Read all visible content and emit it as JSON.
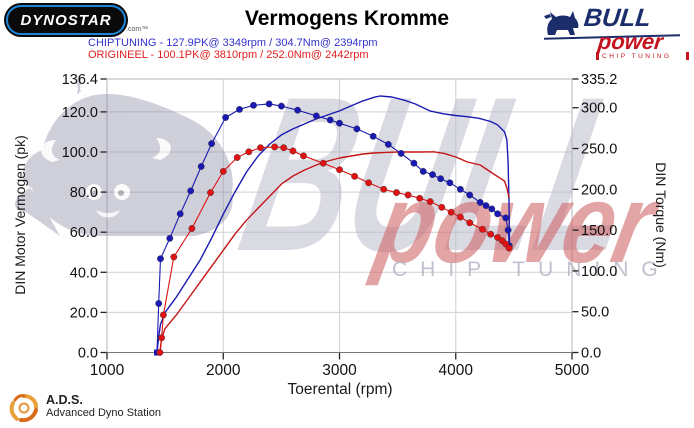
{
  "header": {
    "dynostar_text": "DYNOSTAR",
    "dynostar_domain": ".com™",
    "title": "Vermogens Kromme",
    "legend": [
      {
        "text": "CHIPTUNING  - 127.9PK@ 3349rpm / 304.7Nm@ 2394rpm",
        "color": "#3232cc"
      },
      {
        "text": "ORIGINEEL  - 100.1PK@ 3810rpm / 252.0Nm@ 2442rpm",
        "color": "#e02020"
      }
    ],
    "bullpower_logo": {
      "word1": "BULL",
      "word2": "power",
      "word3": "CHIP TUNING"
    }
  },
  "watermark": {
    "word1": "BULL",
    "word2": "power",
    "word3": "CHIP TUNING"
  },
  "footer": {
    "ads_abbr": "A.D.S.",
    "ads_full": "Advanced Dyno Station"
  },
  "chart_data": {
    "type": "line",
    "title": "Vermogens Kromme",
    "xlabel": "Toerental (rpm)",
    "ylabel_left": "DIN Motor Vermogen (pk)",
    "ylabel_right": "DIN Torque (Nm)",
    "xlim": [
      1000,
      5000
    ],
    "ylim_left": [
      0,
      136.4
    ],
    "ylim_right": [
      0,
      335.2
    ],
    "x_ticks": [
      1000,
      2000,
      3000,
      4000,
      5000
    ],
    "y_left_ticks": [
      0,
      20,
      40,
      60,
      80,
      100,
      120,
      136.4
    ],
    "y_right_ticks": [
      0,
      50,
      100,
      150,
      200,
      250,
      300,
      335.2
    ],
    "grid": true,
    "legend_position": "top-left",
    "series": [
      {
        "name": "CHIPTUNING vermogen (pk)",
        "axis": "left",
        "color": "#1a1ab2",
        "markers": false,
        "width": 1.4,
        "points": [
          [
            1430,
            0
          ],
          [
            1445,
            8
          ],
          [
            1460,
            14
          ],
          [
            1500,
            20
          ],
          [
            1600,
            28
          ],
          [
            1700,
            37
          ],
          [
            1800,
            46
          ],
          [
            1900,
            57
          ],
          [
            2000,
            69
          ],
          [
            2100,
            80
          ],
          [
            2200,
            90
          ],
          [
            2300,
            98
          ],
          [
            2400,
            104
          ],
          [
            2500,
            108.5
          ],
          [
            2600,
            111.5
          ],
          [
            2700,
            114
          ],
          [
            2800,
            116.5
          ],
          [
            2900,
            118.5
          ],
          [
            3000,
            120.5
          ],
          [
            3100,
            123
          ],
          [
            3200,
            125.5
          ],
          [
            3300,
            127.3
          ],
          [
            3349,
            127.9
          ],
          [
            3450,
            127.4
          ],
          [
            3550,
            126
          ],
          [
            3650,
            124
          ],
          [
            3778,
            120.5
          ],
          [
            3900,
            119
          ],
          [
            4000,
            118.2
          ],
          [
            4100,
            117.6
          ],
          [
            4200,
            116.8
          ],
          [
            4300,
            115.2
          ],
          [
            4360,
            113.5
          ],
          [
            4420,
            110
          ],
          [
            4440,
            106
          ],
          [
            4450,
            95
          ],
          [
            4458,
            75
          ],
          [
            4462,
            53
          ]
        ]
      },
      {
        "name": "ORIGINEEL vermogen (pk)",
        "axis": "left",
        "color": "#c41616",
        "markers": false,
        "width": 1.4,
        "points": [
          [
            1455,
            0
          ],
          [
            1470,
            7
          ],
          [
            1500,
            12
          ],
          [
            1600,
            19
          ],
          [
            1700,
            27
          ],
          [
            1800,
            35
          ],
          [
            1900,
            43
          ],
          [
            2000,
            51
          ],
          [
            2100,
            59
          ],
          [
            2200,
            66
          ],
          [
            2300,
            72
          ],
          [
            2400,
            78
          ],
          [
            2500,
            84
          ],
          [
            2600,
            88
          ],
          [
            2700,
            91
          ],
          [
            2800,
            93.5
          ],
          [
            2900,
            95.5
          ],
          [
            3000,
            97
          ],
          [
            3100,
            98
          ],
          [
            3200,
            99
          ],
          [
            3300,
            99.5
          ],
          [
            3400,
            99.8
          ],
          [
            3500,
            100
          ],
          [
            3600,
            100
          ],
          [
            3700,
            100
          ],
          [
            3810,
            100.1
          ],
          [
            3900,
            99.3
          ],
          [
            4000,
            97.5
          ],
          [
            4100,
            95
          ],
          [
            4210,
            93.5
          ],
          [
            4300,
            90
          ],
          [
            4380,
            87
          ],
          [
            4420,
            85.5
          ],
          [
            4440,
            82
          ],
          [
            4452,
            79
          ],
          [
            4460,
            77
          ]
        ]
      },
      {
        "name": "CHIPTUNING koppel (Nm)",
        "axis": "right",
        "color": "#1a1ab2",
        "markers": true,
        "start_marker": "square",
        "width": 1.1,
        "points": [
          [
            1430,
            0
          ],
          [
            1445,
            60
          ],
          [
            1460,
            115
          ],
          [
            1540,
            140
          ],
          [
            1630,
            170
          ],
          [
            1720,
            198
          ],
          [
            1810,
            228
          ],
          [
            1900,
            256
          ],
          [
            2020,
            288
          ],
          [
            2140,
            298
          ],
          [
            2260,
            303
          ],
          [
            2394,
            304.7
          ],
          [
            2500,
            302
          ],
          [
            2640,
            297
          ],
          [
            2800,
            290
          ],
          [
            2920,
            285
          ],
          [
            3000,
            281
          ],
          [
            3150,
            274
          ],
          [
            3290,
            265
          ],
          [
            3420,
            255
          ],
          [
            3530,
            244
          ],
          [
            3640,
            232
          ],
          [
            3720,
            222
          ],
          [
            3800,
            218
          ],
          [
            3870,
            213
          ],
          [
            3950,
            208
          ],
          [
            4040,
            200
          ],
          [
            4120,
            193
          ],
          [
            4210,
            184
          ],
          [
            4260,
            180
          ],
          [
            4310,
            176
          ],
          [
            4360,
            170
          ],
          [
            4430,
            165
          ],
          [
            4450,
            150
          ],
          [
            4460,
            131
          ]
        ]
      },
      {
        "name": "ORIGINEEL koppel (Nm)",
        "axis": "right",
        "color": "#e01212",
        "markers": true,
        "width": 1.1,
        "points": [
          [
            1455,
            0
          ],
          [
            1470,
            18
          ],
          [
            1485,
            46
          ],
          [
            1575,
            117
          ],
          [
            1730,
            152
          ],
          [
            1890,
            196
          ],
          [
            2000,
            222
          ],
          [
            2120,
            239
          ],
          [
            2220,
            246
          ],
          [
            2320,
            251
          ],
          [
            2442,
            252
          ],
          [
            2520,
            251
          ],
          [
            2600,
            247
          ],
          [
            2690,
            241
          ],
          [
            2860,
            232
          ],
          [
            3000,
            224
          ],
          [
            3130,
            216
          ],
          [
            3250,
            208
          ],
          [
            3380,
            200
          ],
          [
            3490,
            196
          ],
          [
            3590,
            193
          ],
          [
            3690,
            189
          ],
          [
            3780,
            185
          ],
          [
            3880,
            178
          ],
          [
            3960,
            172
          ],
          [
            4040,
            166
          ],
          [
            4120,
            159
          ],
          [
            4230,
            151
          ],
          [
            4300,
            145
          ],
          [
            4360,
            141
          ],
          [
            4400,
            137
          ],
          [
            4430,
            133
          ],
          [
            4460,
            128
          ]
        ]
      }
    ]
  }
}
